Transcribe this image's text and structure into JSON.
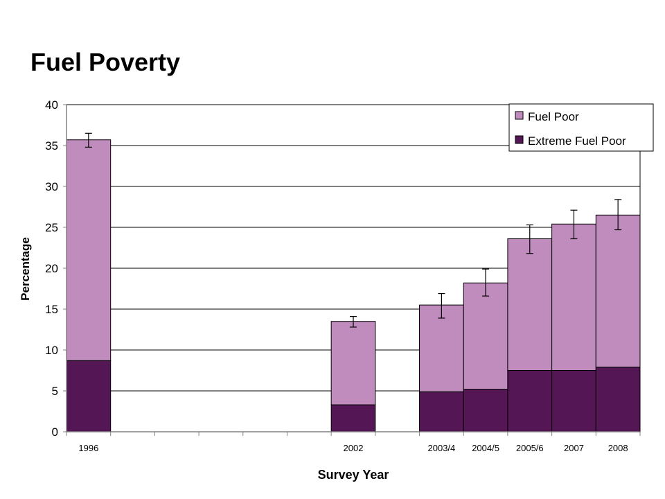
{
  "page": {
    "title": "Fuel Poverty"
  },
  "colors": {
    "fuel_poor": "#c08bbd",
    "extreme_fuel_poor": "#551656",
    "grid": "#000000",
    "axis": "#808080"
  },
  "chart_data": {
    "type": "bar",
    "stacked": true,
    "title": "",
    "xlabel": "Survey Year",
    "ylabel": "Percentage",
    "ylim": [
      0,
      40
    ],
    "yticks": [
      0,
      5,
      10,
      15,
      20,
      25,
      30,
      35,
      40
    ],
    "grid": true,
    "legend": {
      "position": "top-right",
      "entries": [
        "Fuel Poor",
        "Extreme Fuel Poor"
      ]
    },
    "x_slots": 13,
    "categories": [
      "1996",
      "2002",
      "2003/4",
      "2004/5",
      "2005/6",
      "2007",
      "2008"
    ],
    "category_slots": [
      1,
      7,
      9,
      10,
      11,
      12,
      13
    ],
    "series": [
      {
        "name": "Extreme Fuel Poor",
        "values": [
          8.7,
          3.3,
          4.9,
          5.2,
          7.5,
          7.5,
          7.9
        ]
      },
      {
        "name": "Fuel Poor",
        "values": [
          27.0,
          10.2,
          10.6,
          13.0,
          16.1,
          17.9,
          18.6
        ]
      }
    ],
    "totals": [
      35.7,
      13.5,
      15.5,
      18.2,
      23.6,
      25.4,
      26.5
    ],
    "error_bars": {
      "low": [
        34.8,
        12.8,
        13.9,
        16.6,
        21.8,
        23.6,
        24.7
      ],
      "high": [
        36.5,
        14.1,
        16.9,
        19.9,
        25.3,
        27.1,
        28.4
      ]
    }
  }
}
